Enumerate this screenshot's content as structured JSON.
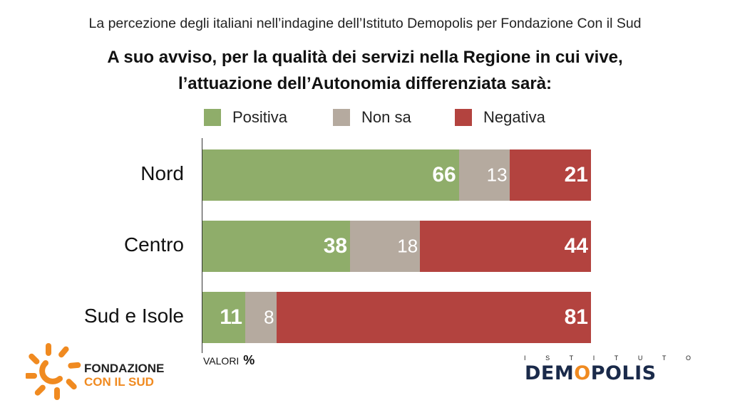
{
  "header": {
    "subtitle": "La percezione degli italiani nell’indagine dell’Istituto Demopolis per Fondazione Con il Sud",
    "title_line1": "A suo avviso, per la qualità dei servizi nella Regione in cui vive,",
    "title_line2": "l’attuazione dell’Autonomia differenziata sarà:"
  },
  "footer": {
    "units_label": "VALORI",
    "units_symbol": "%"
  },
  "logos": {
    "left_line1": "FONDAZIONE",
    "left_line2": "CON IL SUD",
    "right_tagline": "ISTITUTO",
    "right_brand_a": "DEM",
    "right_brand_o": "O",
    "right_brand_b": "POLIS"
  },
  "colors": {
    "positiva": "#8fad6a",
    "non_sa": "#b5aa9f",
    "negativa": "#b3433f",
    "brand_orange": "#f08a20",
    "brand_navy": "#1a2a4a"
  },
  "chart_data": {
    "type": "bar",
    "orientation": "horizontal",
    "stacked": true,
    "categories": [
      "Nord",
      "Centro",
      "Sud e Isole"
    ],
    "series": [
      {
        "name": "Positiva",
        "values": [
          66,
          38,
          11
        ]
      },
      {
        "name": "Non sa",
        "values": [
          13,
          18,
          8
        ]
      },
      {
        "name": "Negativa",
        "values": [
          21,
          44,
          81
        ]
      }
    ],
    "xlim": [
      0,
      100
    ],
    "legend_position": "top",
    "grid": false,
    "unit": "%"
  }
}
